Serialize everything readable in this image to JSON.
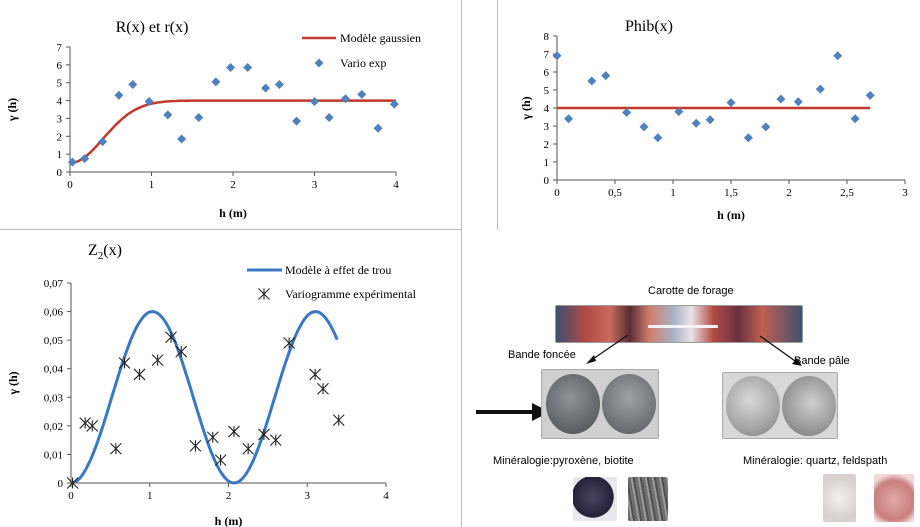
{
  "colors": {
    "model_red": "#c0392b",
    "marker_blue": "#4f81bd",
    "model_blue": "#3b78c4",
    "axis": "#555555",
    "cross": "#222222"
  },
  "chart_data": [
    {
      "id": "r",
      "type": "scatter",
      "title": "R(x)  et r(x)",
      "xlabel": "h (m)",
      "ylabel": "γ (h)",
      "xlim": [
        0,
        4
      ],
      "ylim": [
        0,
        7
      ],
      "xticks": [
        "0",
        "1",
        "2",
        "3",
        "4"
      ],
      "yticks": [
        "0",
        "1",
        "2",
        "3",
        "4",
        "5",
        "6",
        "7"
      ],
      "grid": false,
      "legend_position": "top-right",
      "series": [
        {
          "name": "Modèle gaussien",
          "kind": "line",
          "color": "#c0392b",
          "model": {
            "family": "gaussian",
            "sill": 4.0,
            "range": 1.0,
            "nugget": 0.5
          }
        },
        {
          "name": "Vario exp",
          "kind": "scatter",
          "marker": "diamond",
          "color": "#4f81bd",
          "x": [
            0.03,
            0.18,
            0.4,
            0.6,
            0.77,
            0.97,
            1.2,
            1.37,
            1.58,
            1.79,
            1.97,
            2.18,
            2.4,
            2.57,
            2.78,
            3.0,
            3.18,
            3.38,
            3.58,
            3.78,
            3.98
          ],
          "y": [
            0.55,
            0.75,
            1.7,
            4.3,
            4.9,
            3.95,
            3.2,
            1.85,
            3.05,
            5.05,
            5.85,
            5.85,
            4.7,
            4.9,
            2.85,
            3.95,
            3.05,
            4.1,
            4.35,
            2.45,
            3.8
          ]
        }
      ]
    },
    {
      "id": "phib",
      "type": "scatter",
      "title": "Phib(x)",
      "xlabel": "h (m)",
      "ylabel": "γ (h)",
      "xlim": [
        0,
        3
      ],
      "ylim": [
        0,
        8
      ],
      "xticks": [
        "0",
        "0,5",
        "1",
        "1,5",
        "2",
        "2,5",
        "3"
      ],
      "yticks": [
        "0",
        "1",
        "2",
        "3",
        "4",
        "5",
        "6",
        "7",
        "8"
      ],
      "grid": false,
      "series": [
        {
          "kind": "line",
          "color": "#c0392b",
          "x": [
            0,
            2.7
          ],
          "y": [
            4.0,
            4.0
          ]
        },
        {
          "kind": "scatter",
          "marker": "diamond",
          "color": "#4f81bd",
          "x": [
            0.0,
            0.1,
            0.3,
            0.42,
            0.6,
            0.75,
            0.87,
            1.05,
            1.2,
            1.32,
            1.5,
            1.65,
            1.8,
            1.93,
            2.08,
            2.27,
            2.42,
            2.57,
            2.7
          ],
          "y": [
            6.9,
            3.4,
            5.5,
            5.8,
            3.75,
            2.95,
            2.35,
            3.8,
            3.15,
            3.35,
            4.3,
            2.35,
            2.95,
            4.5,
            4.35,
            5.05,
            6.9,
            3.4,
            4.7
          ]
        }
      ]
    },
    {
      "id": "z2",
      "type": "scatter",
      "title_main": "Z",
      "title_sub": "2",
      "title_tail": "(x)",
      "xlabel": "h (m)",
      "ylabel": "γ (h)",
      "xlim": [
        0,
        4
      ],
      "ylim": [
        0,
        0.07
      ],
      "xticks": [
        "0",
        "1",
        "2",
        "3",
        "4"
      ],
      "yticks": [
        "0",
        "0,01",
        "0,02",
        "0,03",
        "0,04",
        "0,05",
        "0,06",
        "0,07"
      ],
      "grid": false,
      "legend_position": "top-right",
      "series": [
        {
          "name": "Modèle  à effet de trou",
          "kind": "line",
          "color": "#3b78c4",
          "model": {
            "family": "hole-effect",
            "amplitude": 0.06,
            "period": 2.07,
            "x_end": 3.38
          }
        },
        {
          "name": "Variogramme expérimental",
          "kind": "scatter",
          "marker": "asterisk",
          "color": "#222222",
          "x": [
            0.02,
            0.18,
            0.27,
            0.57,
            0.68,
            0.87,
            1.1,
            1.27,
            1.4,
            1.58,
            1.8,
            1.9,
            2.07,
            2.25,
            2.45,
            2.6,
            2.77,
            3.1,
            3.2,
            3.4
          ],
          "y": [
            0.0,
            0.021,
            0.02,
            0.012,
            0.042,
            0.038,
            0.043,
            0.051,
            0.046,
            0.013,
            0.016,
            0.008,
            0.018,
            0.012,
            0.017,
            0.015,
            0.049,
            0.038,
            0.033,
            0.022
          ]
        }
      ]
    }
  ],
  "core_figure": {
    "title": "Carotte de forage",
    "dark_band_label": "Bande foncée",
    "pale_band_label": "Bande pâle",
    "dark_mineralogy": "Minéralogie:pyroxène, biotite",
    "pale_mineralogy": "Minéralogie: quartz, feldspath"
  }
}
